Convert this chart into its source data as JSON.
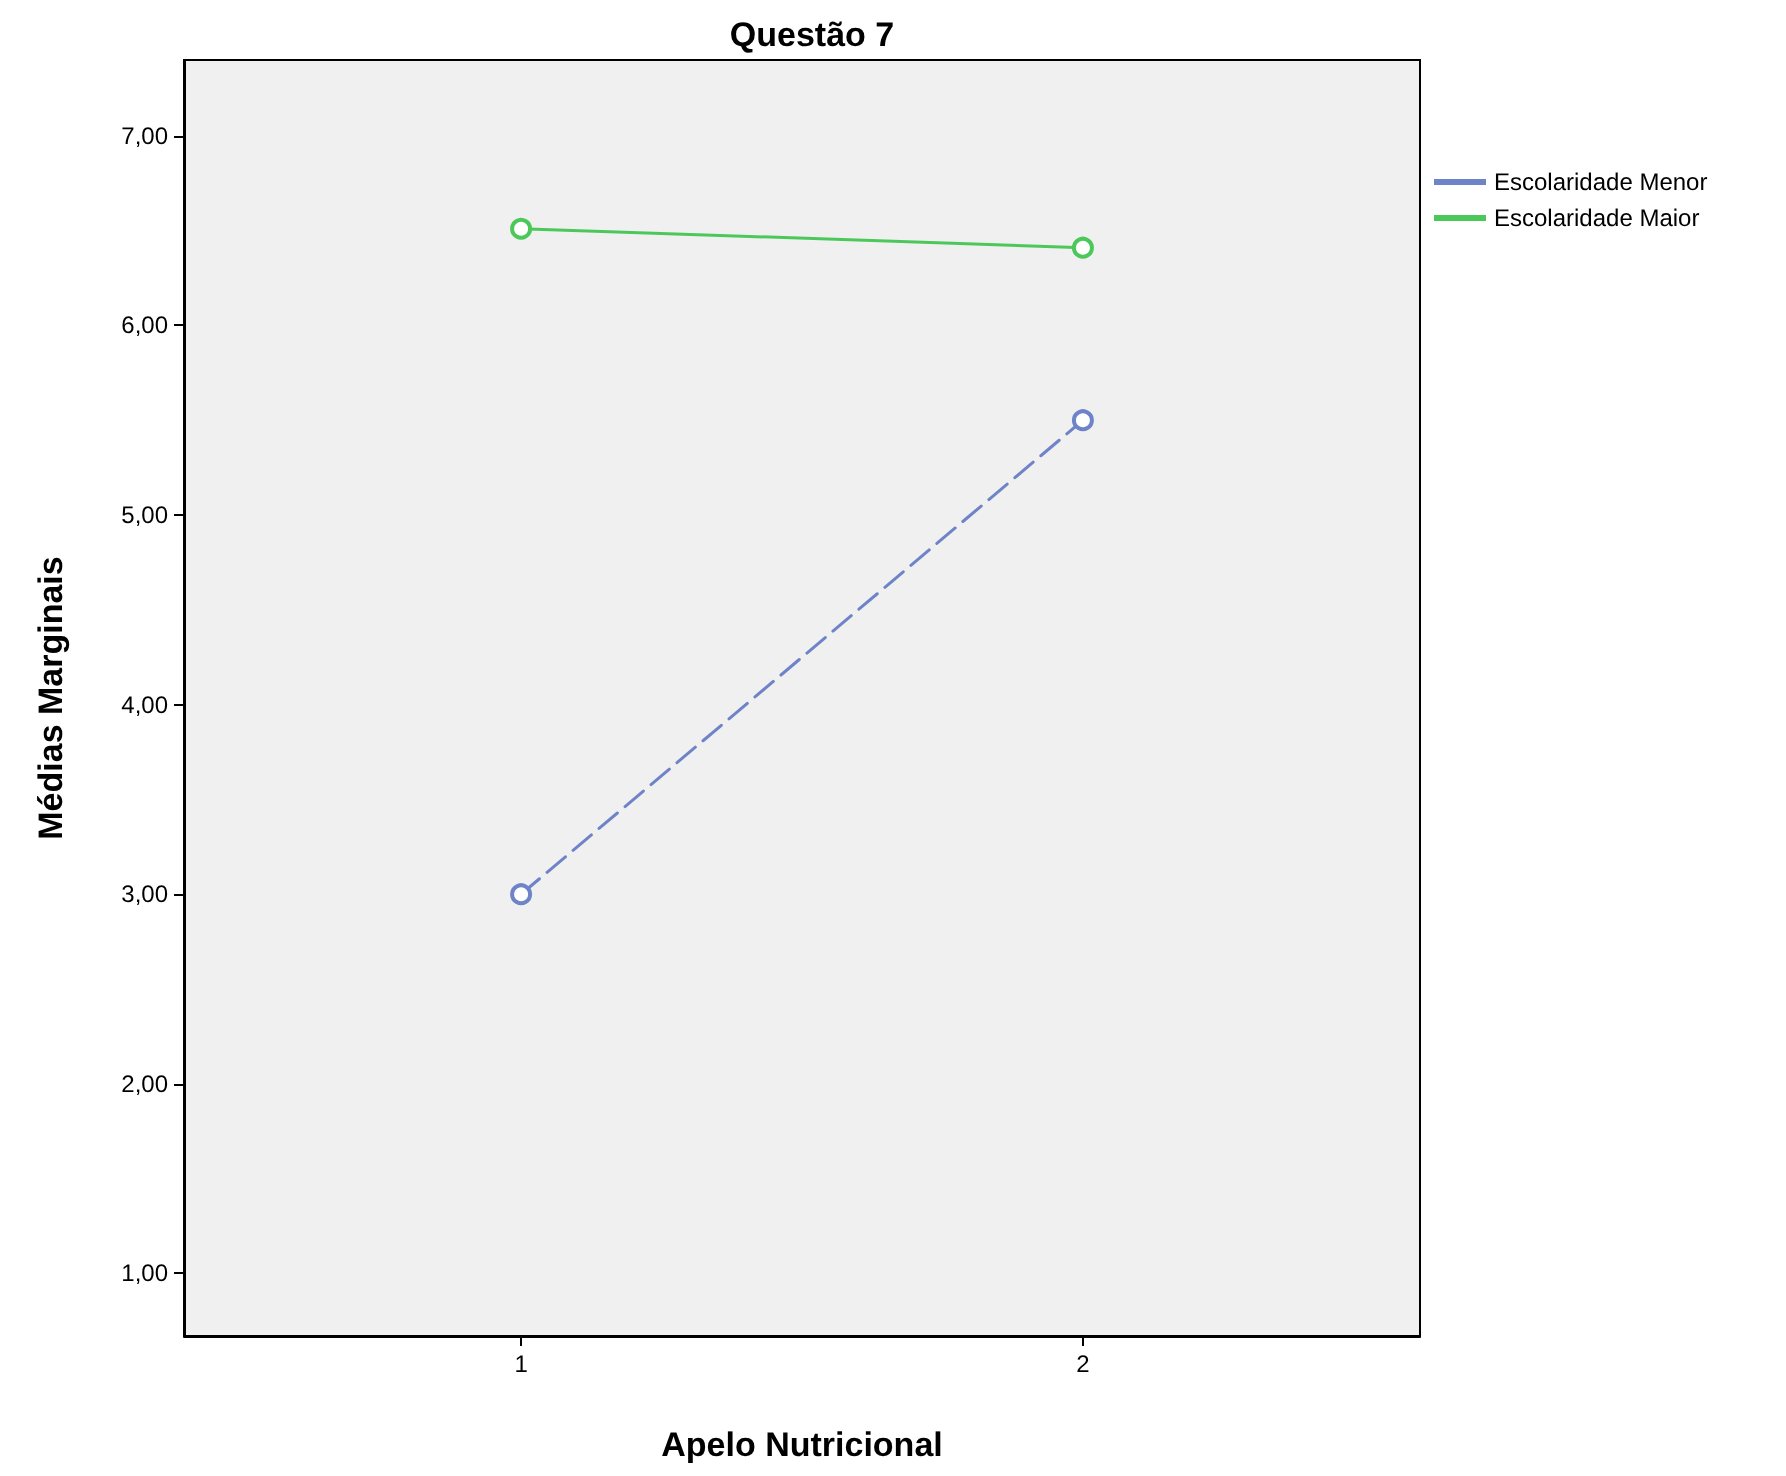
{
  "chart_data": {
    "type": "line",
    "title": "Questão 7",
    "xlabel": "Apelo Nutricional",
    "ylabel": "Médias Marginais",
    "x": [
      1,
      2
    ],
    "series": [
      {
        "name": "Escolaridade Menor",
        "color": "#6f83c8",
        "values": [
          3.0,
          5.5
        ],
        "line_style": "dashed"
      },
      {
        "name": "Escolaridade Maior",
        "color": "#4cc85a",
        "values": [
          6.51,
          6.41
        ],
        "line_style": "solid"
      }
    ],
    "xlim": [
      0.4,
      2.6
    ],
    "xticks": [
      1,
      2
    ],
    "ylim": [
      0.67,
      7.4
    ],
    "yticks": [
      {
        "value": 1,
        "label": "1,00"
      },
      {
        "value": 2,
        "label": "2,00"
      },
      {
        "value": 3,
        "label": "3,00"
      },
      {
        "value": 4,
        "label": "4,00"
      },
      {
        "value": 5,
        "label": "5,00"
      },
      {
        "value": 6,
        "label": "6,00"
      },
      {
        "value": 7,
        "label": "7,00"
      }
    ],
    "grid": false,
    "legend": "right",
    "marker": "circle"
  }
}
